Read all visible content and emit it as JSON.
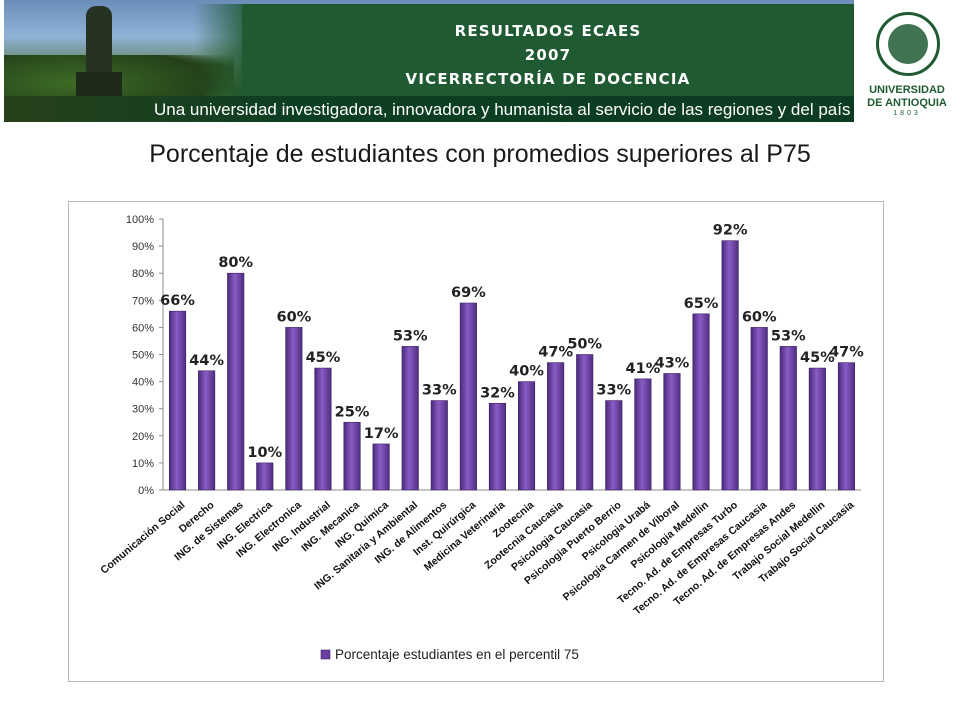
{
  "banner": {
    "title_line1": "RESULTADOS ECAES",
    "title_line2": "2007",
    "title_line3": "VICERRECTORÍA DE DOCENCIA",
    "tagline": "Una universidad investigadora, innovadora y humanista al servicio de las regiones y del país",
    "logo_line1": "UNIVERSIDAD",
    "logo_line2": "DE ANTIOQUIA",
    "logo_line3": "1803"
  },
  "slide_title": "Porcentaje de estudiantes con promedios superiores al P75",
  "chart_data": {
    "type": "bar",
    "categories": [
      "Comunicación Social",
      "Derecho",
      "ING. de Sistemas",
      "ING. Electrica",
      "ING. Electronica",
      "ING. Industrial",
      "ING. Mecanica",
      "ING. Quimica",
      "ING. Sanitaria y Ambiental",
      "ING. de Alimentos",
      "Inst. Quirúrgica",
      "Medicina Veterinaria",
      "Zootecnia",
      "Zootecnia Caucasia",
      "Psicologia Caucasia",
      "Psicologia Puerto Berrio",
      "Psicologia Urabá",
      "Psicologia Carmen de Viboral",
      "Psicologia Medellin",
      "Tecno. Ad. de Empresas Turbo",
      "Tecno. Ad. de Empresas Caucasia",
      "Tecno. Ad. de Empresas Andes",
      "Trabajo Social Medellin",
      "Trabajo Social Caucasia"
    ],
    "series": [
      {
        "name": "Porcentaje estudiantes en el percentil 75",
        "values": [
          66,
          44,
          80,
          10,
          60,
          45,
          25,
          17,
          53,
          33,
          69,
          32,
          40,
          47,
          50,
          33,
          41,
          43,
          65,
          92,
          60,
          53,
          45,
          47
        ]
      }
    ],
    "data_labels": [
      "66%",
      "44%",
      "80%",
      "10%",
      "60%",
      "45%",
      "25%",
      "17%",
      "53%",
      "33%",
      "69%",
      "32%",
      "40%",
      "47%",
      "50%",
      "33%",
      "41%",
      "43%",
      "65%",
      "92%",
      "60%",
      "53%",
      "45%",
      "47%"
    ],
    "y_ticks": [
      "0%",
      "10%",
      "20%",
      "30%",
      "40%",
      "50%",
      "60%",
      "70%",
      "80%",
      "90%",
      "100%"
    ],
    "ylim": [
      0,
      100
    ],
    "grid": false,
    "legend_position": "bottom",
    "bar_color": "#6b3fa0"
  }
}
